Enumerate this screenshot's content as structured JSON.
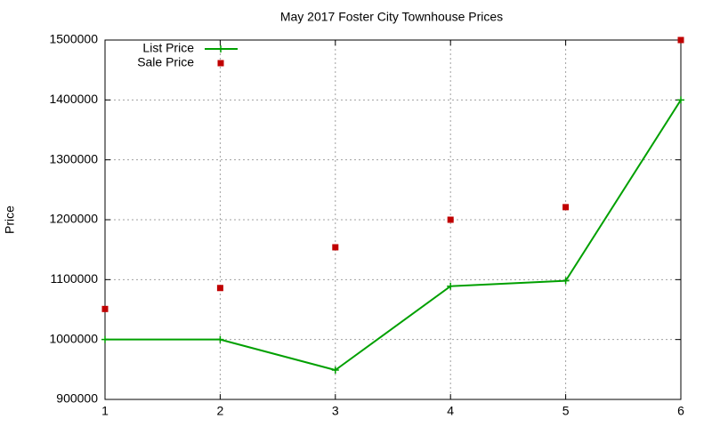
{
  "chart_data": {
    "type": "line",
    "title": "May 2017 Foster City Townhouse Prices",
    "y_label": "Price",
    "x": [
      1,
      2,
      3,
      4,
      5,
      6
    ],
    "series": [
      {
        "name": "List Price",
        "color": "#00a000",
        "mode": "lines+markers",
        "marker": "plus",
        "values": [
          1000000,
          1000000,
          949000,
          1089000,
          1098000,
          1400000
        ]
      },
      {
        "name": "Sale Price",
        "color": "#c00000",
        "mode": "markers",
        "marker": "square",
        "values": [
          1051000,
          1086000,
          1154000,
          1200000,
          1221000,
          1500000
        ]
      }
    ],
    "xlim": [
      1,
      6
    ],
    "xticks": [
      1,
      2,
      3,
      4,
      5,
      6
    ],
    "ylim": [
      900000,
      1500000
    ],
    "yticks": [
      900000,
      1000000,
      1100000,
      1200000,
      1300000,
      1400000,
      1500000
    ],
    "grid": true,
    "legend": "top-left"
  }
}
